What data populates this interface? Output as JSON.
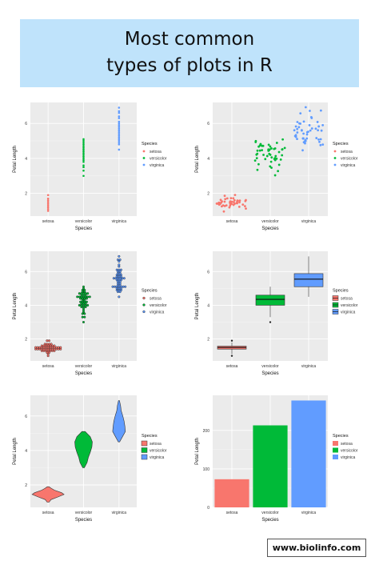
{
  "header": {
    "title_line1": "Most common",
    "title_line2": "types of plots in R"
  },
  "footer": {
    "url": "www.biolinfo.com"
  },
  "colors": {
    "setosa": "#F8766D",
    "versicolor": "#00BA38",
    "virginica": "#619CFF",
    "panel": "#EBEBEB",
    "grid": "#ffffff"
  },
  "chart_data": [
    {
      "type": "scatter",
      "variant": "strip",
      "xlabel": "Species",
      "ylabel": "Petal Length",
      "categories": [
        "setosa",
        "versicolor",
        "virginica"
      ],
      "y_ticks": [
        2,
        4,
        6
      ],
      "ylim": [
        0.7,
        7.2
      ],
      "legend": {
        "title": "Species",
        "entries": [
          "setosa",
          "versicolor",
          "virginica"
        ],
        "position": "right"
      },
      "series": [
        {
          "name": "setosa",
          "values": [
            1.0,
            1.1,
            1.2,
            1.3,
            1.4,
            1.5,
            1.6,
            1.7,
            1.9
          ]
        },
        {
          "name": "versicolor",
          "values": [
            3.0,
            3.3,
            3.5,
            3.6,
            3.8,
            3.9,
            4.0,
            4.1,
            4.2,
            4.3,
            4.4,
            4.5,
            4.6,
            4.7,
            4.8,
            4.9,
            5.0,
            5.1
          ]
        },
        {
          "name": "virginica",
          "values": [
            4.5,
            4.8,
            4.9,
            5.0,
            5.1,
            5.2,
            5.3,
            5.4,
            5.5,
            5.6,
            5.7,
            5.8,
            5.9,
            6.0,
            6.1,
            6.3,
            6.4,
            6.6,
            6.7,
            6.9
          ]
        }
      ]
    },
    {
      "type": "scatter",
      "variant": "jitter",
      "xlabel": "Species",
      "ylabel": "Petal Length",
      "categories": [
        "setosa",
        "versicolor",
        "virginica"
      ],
      "y_ticks": [
        2,
        4,
        6
      ],
      "ylim": [
        0.7,
        7.2
      ],
      "legend": {
        "title": "Species",
        "entries": [
          "setosa",
          "versicolor",
          "virginica"
        ],
        "position": "right"
      },
      "series": [
        {
          "name": "setosa",
          "values": [
            1.4,
            1.4,
            1.3,
            1.5,
            1.4,
            1.7,
            1.4,
            1.5,
            1.4,
            1.5,
            1.5,
            1.6,
            1.4,
            1.1,
            1.2,
            1.5,
            1.3,
            1.4,
            1.7,
            1.5,
            1.7,
            1.5,
            1.0,
            1.7,
            1.9,
            1.6,
            1.6,
            1.5,
            1.4,
            1.6,
            1.6,
            1.5,
            1.5,
            1.4,
            1.5,
            1.2,
            1.3,
            1.4,
            1.3,
            1.5,
            1.3,
            1.3,
            1.3,
            1.6,
            1.9,
            1.4,
            1.6,
            1.4,
            1.5,
            1.4
          ]
        },
        {
          "name": "versicolor",
          "values": [
            4.7,
            4.5,
            4.9,
            4.0,
            4.6,
            4.5,
            4.7,
            3.3,
            4.6,
            3.9,
            3.5,
            4.2,
            4.0,
            4.7,
            3.6,
            4.4,
            4.5,
            4.1,
            4.5,
            3.9,
            4.8,
            4.0,
            4.9,
            4.7,
            4.3,
            4.4,
            4.8,
            5.0,
            4.5,
            3.5,
            3.8,
            3.7,
            3.9,
            5.1,
            4.5,
            4.5,
            4.7,
            4.4,
            4.1,
            4.0,
            4.4,
            4.6,
            4.0,
            3.3,
            4.2,
            4.2,
            4.2,
            4.3,
            3.0,
            4.1
          ]
        },
        {
          "name": "virginica",
          "values": [
            6.0,
            5.1,
            5.9,
            5.6,
            5.8,
            6.6,
            4.5,
            6.3,
            5.8,
            6.1,
            5.1,
            5.3,
            5.5,
            5.0,
            5.1,
            5.3,
            5.5,
            6.7,
            6.9,
            5.0,
            5.7,
            4.9,
            6.7,
            4.9,
            5.7,
            6.0,
            4.8,
            4.9,
            5.6,
            5.8,
            6.1,
            6.4,
            5.6,
            5.1,
            5.6,
            6.1,
            5.6,
            5.5,
            4.8,
            5.4,
            5.6,
            5.1,
            5.1,
            5.9,
            5.7,
            5.2,
            5.0,
            5.2,
            5.4,
            5.1
          ]
        }
      ]
    },
    {
      "type": "scatter",
      "variant": "dotplot",
      "xlabel": "Species",
      "ylabel": "Petal Length",
      "categories": [
        "setosa",
        "versicolor",
        "virginica"
      ],
      "y_ticks": [
        2,
        4,
        6
      ],
      "ylim": [
        0.7,
        7.2
      ],
      "legend": {
        "title": "Species",
        "entries": [
          "setosa",
          "versicolor",
          "virginica"
        ],
        "position": "right"
      },
      "series": [
        {
          "name": "setosa",
          "bins": [
            {
              "y": 1.0,
              "count": 1
            },
            {
              "y": 1.1,
              "count": 1
            },
            {
              "y": 1.2,
              "count": 2
            },
            {
              "y": 1.3,
              "count": 7
            },
            {
              "y": 1.4,
              "count": 13
            },
            {
              "y": 1.5,
              "count": 13
            },
            {
              "y": 1.6,
              "count": 7
            },
            {
              "y": 1.7,
              "count": 4
            },
            {
              "y": 1.9,
              "count": 2
            }
          ]
        },
        {
          "name": "versicolor",
          "bins": [
            {
              "y": 3.0,
              "count": 1
            },
            {
              "y": 3.3,
              "count": 2
            },
            {
              "y": 3.5,
              "count": 2
            },
            {
              "y": 3.6,
              "count": 1
            },
            {
              "y": 3.7,
              "count": 1
            },
            {
              "y": 3.8,
              "count": 1
            },
            {
              "y": 3.9,
              "count": 3
            },
            {
              "y": 4.0,
              "count": 5
            },
            {
              "y": 4.1,
              "count": 3
            },
            {
              "y": 4.2,
              "count": 4
            },
            {
              "y": 4.3,
              "count": 2
            },
            {
              "y": 4.4,
              "count": 4
            },
            {
              "y": 4.5,
              "count": 7
            },
            {
              "y": 4.6,
              "count": 3
            },
            {
              "y": 4.7,
              "count": 5
            },
            {
              "y": 4.8,
              "count": 2
            },
            {
              "y": 4.9,
              "count": 2
            },
            {
              "y": 5.0,
              "count": 1
            },
            {
              "y": 5.1,
              "count": 1
            }
          ]
        },
        {
          "name": "virginica",
          "bins": [
            {
              "y": 4.5,
              "count": 1
            },
            {
              "y": 4.8,
              "count": 2
            },
            {
              "y": 4.9,
              "count": 3
            },
            {
              "y": 5.0,
              "count": 3
            },
            {
              "y": 5.1,
              "count": 7
            },
            {
              "y": 5.2,
              "count": 2
            },
            {
              "y": 5.3,
              "count": 2
            },
            {
              "y": 5.4,
              "count": 2
            },
            {
              "y": 5.5,
              "count": 3
            },
            {
              "y": 5.6,
              "count": 6
            },
            {
              "y": 5.7,
              "count": 3
            },
            {
              "y": 5.8,
              "count": 3
            },
            {
              "y": 5.9,
              "count": 2
            },
            {
              "y": 6.0,
              "count": 2
            },
            {
              "y": 6.1,
              "count": 3
            },
            {
              "y": 6.3,
              "count": 1
            },
            {
              "y": 6.4,
              "count": 1
            },
            {
              "y": 6.6,
              "count": 1
            },
            {
              "y": 6.7,
              "count": 2
            },
            {
              "y": 6.9,
              "count": 1
            }
          ]
        }
      ]
    },
    {
      "type": "box",
      "xlabel": "Species",
      "ylabel": "Petal Length",
      "categories": [
        "setosa",
        "versicolor",
        "virginica"
      ],
      "y_ticks": [
        2,
        4,
        6
      ],
      "ylim": [
        0.7,
        7.2
      ],
      "legend": {
        "title": "Species",
        "entries": [
          "setosa",
          "versicolor",
          "virginica"
        ],
        "position": "right"
      },
      "series": [
        {
          "name": "setosa",
          "min": 1.1,
          "q1": 1.4,
          "median": 1.5,
          "q3": 1.575,
          "max": 1.8,
          "outliers": [
            1.0,
            1.9
          ]
        },
        {
          "name": "versicolor",
          "min": 3.3,
          "q1": 4.0,
          "median": 4.35,
          "q3": 4.6,
          "max": 5.1,
          "outliers": [
            3.0
          ]
        },
        {
          "name": "virginica",
          "min": 4.5,
          "q1": 5.1,
          "median": 5.55,
          "q3": 5.875,
          "max": 6.9,
          "outliers": []
        }
      ]
    },
    {
      "type": "violin",
      "xlabel": "Species",
      "ylabel": "Petal Length",
      "categories": [
        "setosa",
        "versicolor",
        "virginica"
      ],
      "y_ticks": [
        2,
        4,
        6
      ],
      "ylim": [
        0.7,
        7.2
      ],
      "legend": {
        "title": "Species",
        "entries": [
          "setosa",
          "versicolor",
          "virginica"
        ],
        "position": "right"
      },
      "series": [
        {
          "name": "setosa",
          "profile": [
            [
              1.0,
              0.06
            ],
            [
              1.15,
              0.18
            ],
            [
              1.3,
              0.6
            ],
            [
              1.45,
              1.0
            ],
            [
              1.55,
              0.85
            ],
            [
              1.7,
              0.4
            ],
            [
              1.8,
              0.2
            ],
            [
              1.9,
              0.05
            ]
          ]
        },
        {
          "name": "versicolor",
          "profile": [
            [
              3.0,
              0.05
            ],
            [
              3.3,
              0.22
            ],
            [
              3.6,
              0.3
            ],
            [
              3.9,
              0.42
            ],
            [
              4.2,
              0.52
            ],
            [
              4.5,
              0.55
            ],
            [
              4.8,
              0.42
            ],
            [
              5.1,
              0.1
            ]
          ]
        },
        {
          "name": "virginica",
          "profile": [
            [
              4.5,
              0.04
            ],
            [
              4.8,
              0.22
            ],
            [
              5.1,
              0.4
            ],
            [
              5.4,
              0.37
            ],
            [
              5.7,
              0.32
            ],
            [
              6.0,
              0.24
            ],
            [
              6.3,
              0.14
            ],
            [
              6.6,
              0.1
            ],
            [
              6.9,
              0.03
            ]
          ]
        }
      ]
    },
    {
      "type": "bar",
      "xlabel": "Species",
      "ylabel": "Petal Length",
      "categories": [
        "setosa",
        "versicolor",
        "virginica"
      ],
      "values": [
        73.1,
        213.0,
        277.6
      ],
      "y_ticks": [
        0,
        100,
        200
      ],
      "ylim": [
        0,
        291
      ],
      "legend": {
        "title": "Species",
        "entries": [
          "setosa",
          "versicolor",
          "virginica"
        ],
        "position": "right"
      }
    }
  ]
}
